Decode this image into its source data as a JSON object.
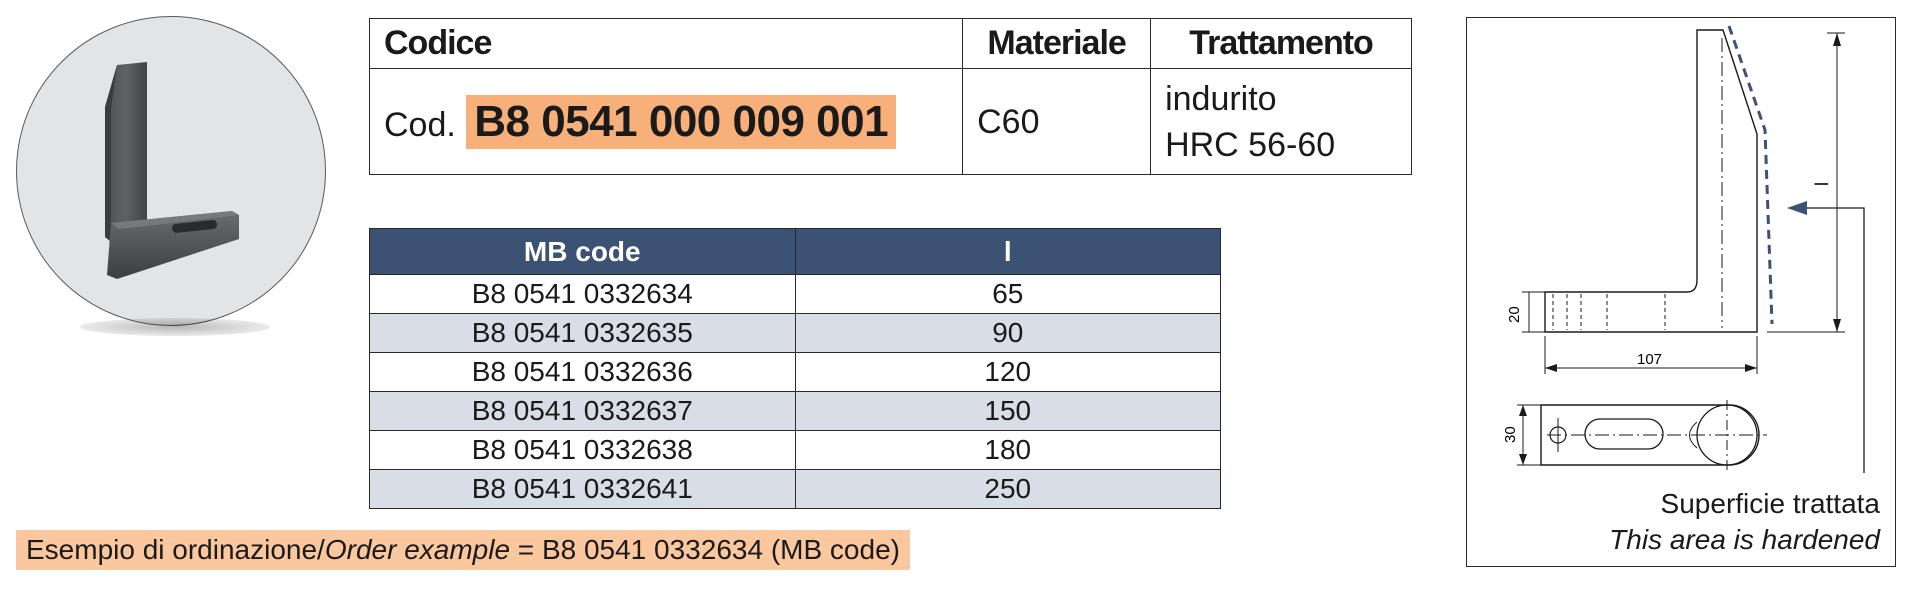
{
  "spec_table": {
    "headers": [
      "Codice",
      "Materiale",
      "Trattamento"
    ],
    "cod_prefix": "Cod.",
    "cod_value": "B8 0541 000 009 001",
    "materiale": "C60",
    "trattamento_line1": "indurito",
    "trattamento_line2": "HRC 56-60"
  },
  "mb_table": {
    "headers": [
      "MB code",
      "l"
    ],
    "rows": [
      {
        "code": "B8 0541 0332634",
        "l": "65"
      },
      {
        "code": "B8 0541 0332635",
        "l": "90"
      },
      {
        "code": "B8 0541 0332636",
        "l": "120"
      },
      {
        "code": "B8 0541 0332637",
        "l": "150"
      },
      {
        "code": "B8 0541 0332638",
        "l": "180"
      },
      {
        "code": "B8 0541 0332641",
        "l": "250"
      }
    ]
  },
  "order_example": {
    "label_it": "Esempio di ordinazione/",
    "label_en": "Order example",
    "value": " = B8 0541 0332634 (MB code)"
  },
  "drawing": {
    "dim_l": "l",
    "dim_20": "20",
    "dim_107": "107",
    "dim_30": "30",
    "caption_it": "Superficie trattata",
    "caption_en": "This area is hardened",
    "dash_color": "#3c5275"
  },
  "colors": {
    "highlight": "#f7b07a",
    "header_blue": "#3c5275",
    "row_alt": "#d8dde6"
  }
}
